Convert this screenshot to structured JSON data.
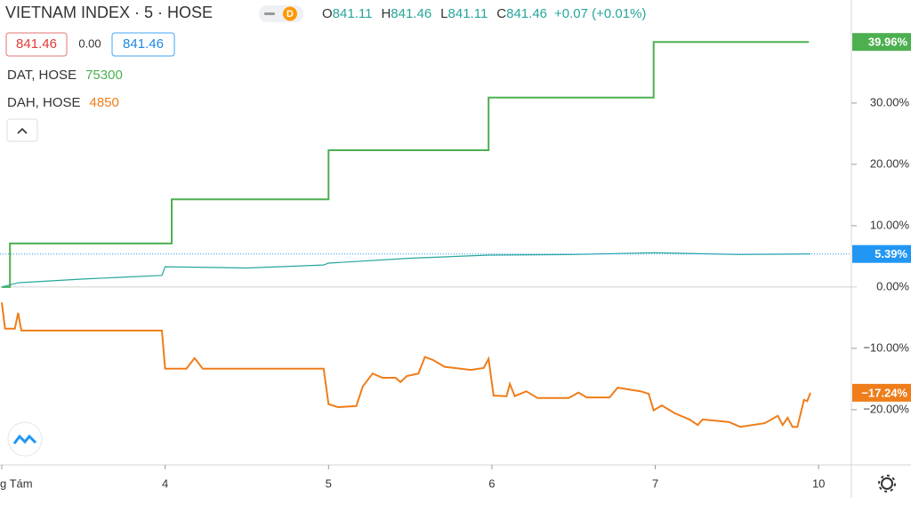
{
  "header": {
    "symbol": "VIETNAM INDEX",
    "interval": "5",
    "exchange": "HOSE",
    "badge": "D",
    "ohlc": [
      {
        "letter": "O",
        "value": "841.11"
      },
      {
        "letter": "H",
        "value": "841.46"
      },
      {
        "letter": "L",
        "value": "841.11"
      },
      {
        "letter": "C",
        "value": "841.46"
      }
    ],
    "change": "+0.07 (+0.01%)",
    "bid": "841.46",
    "spread": "0.00",
    "ask": "841.46"
  },
  "chart_data": {
    "type": "line",
    "xlim": [
      0,
      5.19
    ],
    "xticks": [
      {
        "value": 0,
        "label": "g Tám"
      },
      {
        "value": 1,
        "label": "4"
      },
      {
        "value": 2,
        "label": "5"
      },
      {
        "value": 3,
        "label": "6"
      },
      {
        "value": 4,
        "label": "7"
      },
      {
        "value": 5,
        "label": "10"
      }
    ],
    "ylim": [
      -29,
      46.8
    ],
    "yticks": [
      {
        "value": 30,
        "label": "30.00%"
      },
      {
        "value": 20,
        "label": "20.00%"
      },
      {
        "value": 10,
        "label": "10.00%"
      },
      {
        "value": 0,
        "label": "0.00%"
      },
      {
        "value": -10,
        "label": "−10.00%"
      },
      {
        "value": -20,
        "label": "−20.00%"
      }
    ],
    "series": [
      {
        "name": "DAT, HOSE",
        "legend_value": "75300",
        "color": "#4caf50",
        "x": [
          0,
          0.05,
          0.05,
          1.04,
          1.04,
          2.0,
          2.0,
          2.98,
          2.98,
          3.99,
          3.99,
          4.94
        ],
        "values": [
          0,
          0,
          7.1,
          7.1,
          14.3,
          14.3,
          22.3,
          22.3,
          30.9,
          30.9,
          39.96,
          39.96
        ],
        "last_label": "39.96%"
      },
      {
        "name": "DAH, HOSE",
        "legend_value": "4850",
        "color": "#ef7d1a",
        "x": [
          0,
          0.02,
          0.08,
          0.1,
          0.12,
          0.98,
          1.0,
          1.13,
          1.18,
          1.23,
          1.97,
          2.0,
          2.06,
          2.17,
          2.21,
          2.27,
          2.33,
          2.41,
          2.44,
          2.48,
          2.55,
          2.59,
          2.64,
          2.71,
          2.87,
          2.95,
          2.98,
          3.01,
          3.09,
          3.11,
          3.14,
          3.21,
          3.28,
          3.47,
          3.53,
          3.58,
          3.72,
          3.77,
          3.91,
          3.96,
          3.99,
          4.04,
          4.12,
          4.21,
          4.26,
          4.29,
          4.45,
          4.52,
          4.67,
          4.75,
          4.78,
          4.81,
          4.84,
          4.87,
          4.91,
          4.93,
          4.95
        ],
        "values": [
          -2.5,
          -6.8,
          -6.8,
          -4.2,
          -7.1,
          -7.1,
          -13.3,
          -13.3,
          -11.6,
          -13.3,
          -13.3,
          -19.1,
          -19.6,
          -19.4,
          -16.2,
          -14.1,
          -14.8,
          -14.8,
          -15.5,
          -14.5,
          -14.1,
          -11.4,
          -11.9,
          -13.0,
          -13.5,
          -13.2,
          -11.7,
          -17.7,
          -17.8,
          -15.8,
          -17.8,
          -17.0,
          -18.1,
          -18.1,
          -17.2,
          -18.0,
          -18.0,
          -16.4,
          -17.0,
          -17.4,
          -20.1,
          -19.3,
          -20.6,
          -21.6,
          -22.5,
          -21.6,
          -22.0,
          -22.8,
          -22.2,
          -21.0,
          -22.5,
          -21.3,
          -22.8,
          -22.8,
          -18.4,
          -18.6,
          -17.24
        ],
        "last_label": "−17.24%"
      },
      {
        "color": "#26a69a",
        "x": [
          0,
          0.1,
          0.5,
          0.98,
          1.0,
          1.5,
          1.97,
          2.0,
          2.5,
          2.98,
          3.5,
          4.0,
          4.5,
          4.95
        ],
        "values": [
          0,
          0.7,
          1.3,
          1.9,
          3.3,
          3.1,
          3.6,
          3.9,
          4.7,
          5.2,
          5.3,
          5.6,
          5.3,
          5.39
        ],
        "last_label": "5.39%",
        "last_color": "#2196f3"
      }
    ]
  }
}
